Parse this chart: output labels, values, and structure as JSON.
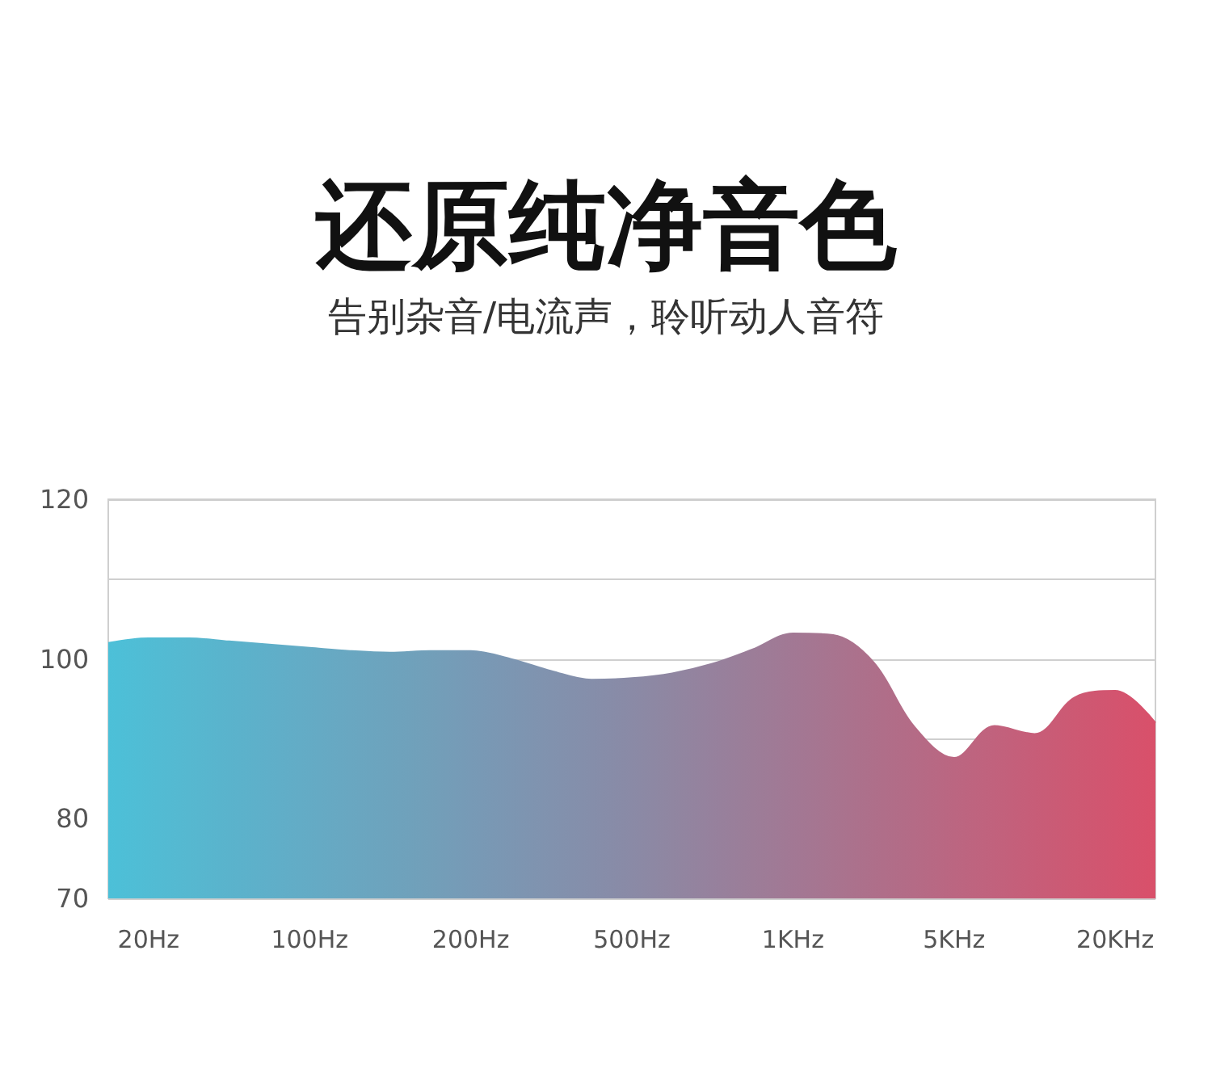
{
  "chart_data": {
    "type": "area",
    "title": "还原纯净音色",
    "subtitle": "告别杂音/电流声，聆听动人音符",
    "categories": [
      null,
      "20Hz",
      null,
      null,
      null,
      "100Hz",
      null,
      null,
      null,
      "200Hz",
      null,
      null,
      null,
      "500Hz",
      null,
      null,
      null,
      "1KHz",
      null,
      null,
      null,
      "5KHz",
      null,
      null,
      null,
      "20KHz",
      null
    ],
    "series": [
      {
        "values": [
          102,
          102.6,
          102.6,
          102.2,
          101.8,
          101.4,
          101,
          100.8,
          101,
          101,
          100,
          98.5,
          97.4,
          97.6,
          98.2,
          99.4,
          101.2,
          103.2,
          103,
          99.6,
          91.6,
          87.6,
          91.6,
          90.6,
          95.2,
          96,
          92
        ],
        "colors": [
          "#4cc0d8",
          "#51bcd4",
          "#56b8d0",
          "#5ab3cc",
          "#5fafc9",
          "#64abc5",
          "#69a7c1",
          "#6da3bd",
          "#729fb9",
          "#779ab6",
          "#7c96b2",
          "#8192ae",
          "#858eaa",
          "#8a8aa6",
          "#9086a1",
          "#96819d",
          "#9c7d98",
          "#a27894",
          "#a8748f",
          "#ae6f8a",
          "#b46b86",
          "#bb6681",
          "#c1627d",
          "#c75d78",
          "#cd5973",
          "#d3546f",
          "#d9506a"
        ]
      }
    ],
    "ylim": [
      70,
      120
    ],
    "yticks": [
      70,
      80,
      {
        "value": 90,
        "label": null
      },
      100,
      {
        "value": 110,
        "label": null
      },
      120
    ],
    "grid": "y",
    "marker": "none"
  }
}
